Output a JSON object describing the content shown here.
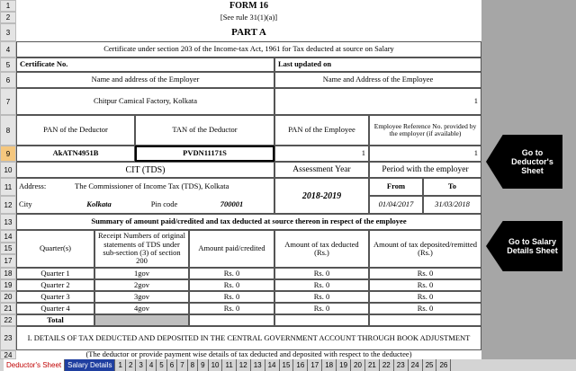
{
  "header": {
    "form": "FORM 16",
    "rule": "[See rule 31(1)(a)]",
    "part": "PART A",
    "certificate": "Certificate under section 203 of the Income-tax Act, 1961 for Tax deducted at source on Salary"
  },
  "row_numbers": [
    1,
    2,
    3,
    4,
    5,
    6,
    7,
    8,
    9,
    10,
    11,
    12,
    13,
    14,
    15,
    17,
    18,
    19,
    20,
    21,
    22,
    23,
    24
  ],
  "fields": {
    "certificate_no": "Certificate No.",
    "last_updated": "Last updated on",
    "employer_label": "Name and address of the Employer",
    "employee_label": "Name and Address of the Employee",
    "employer_name": "Chitpur Camical Factory, Kolkata",
    "employee_name": "1",
    "pan_deductor_label": "PAN of the Deductor",
    "tan_deductor_label": "TAN of the Deductor",
    "pan_employee_label": "PAN of the Employee",
    "emp_ref_label": "Employee Reference No. provided by the employer (if available)",
    "pan_deductor": "AkATN4951B",
    "tan_deductor": "PVDN11171S",
    "pan_employee": "1",
    "emp_ref": "1",
    "cit_label": "CIT (TDS)",
    "assessment_label": "Assessment Year",
    "period_label": "Period with the employer",
    "address_label": "Address:",
    "address": "The Commissioner of Income Tax (TDS), Kolkata",
    "city_label": "City",
    "city": "Kolkata",
    "pin_label": "Pin code",
    "pin": "700001",
    "assessment_year": "2018-2019",
    "from_label": "From",
    "to_label": "To",
    "from": "01/04/2017",
    "to": "31/03/2018"
  },
  "summary": {
    "title": "Summary of amount paid/credited and tax deducted at source thereon in respect of the employee",
    "headers": [
      "Quarter(s)",
      "Receipt Numbers of original statements of TDS under sub-section (3) of section 200",
      "Amount paid/credited",
      "Amount of tax deducted (Rs.)",
      "Amount of tax deposited/remitted (Rs.)"
    ],
    "rows": [
      [
        "Quarter 1",
        "1gov",
        "Rs. 0",
        "Rs. 0",
        "Rs. 0"
      ],
      [
        "Quarter 2",
        "2gov",
        "Rs. 0",
        "Rs. 0",
        "Rs. 0"
      ],
      [
        "Quarter 3",
        "3gov",
        "Rs. 0",
        "Rs. 0",
        "Rs. 0"
      ],
      [
        "Quarter 4",
        "4gov",
        "Rs. 0",
        "Rs. 0",
        "Rs. 0"
      ]
    ],
    "total": "Total"
  },
  "footer": {
    "details": "I. DETAILS OF TAX DEDUCTED AND DEPOSITED IN THE CENTRAL GOVERNMENT ACCOUNT THROUGH BOOK ADJUSTMENT",
    "note": "(The deductor or provide payment wise details of tax deducted and deposited with respect to the deductee)"
  },
  "buttons": [
    "Go to Deductor's Sheet",
    "Go to Salary Details Sheet"
  ],
  "tabs": [
    "Deductor's Sheet",
    "Salary Details",
    "1",
    "2",
    "3",
    "4",
    "5",
    "6",
    "7",
    "8",
    "9",
    "10",
    "11",
    "12",
    "13",
    "14",
    "15",
    "16",
    "17",
    "18",
    "19",
    "20",
    "21",
    "22",
    "23",
    "24",
    "25",
    "26"
  ]
}
